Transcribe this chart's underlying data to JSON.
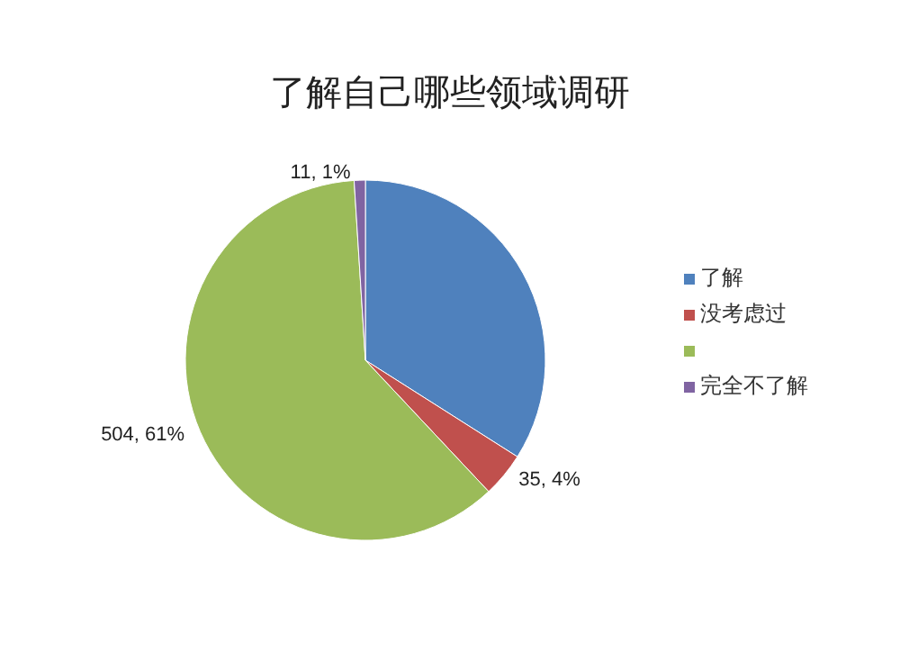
{
  "chart_data": {
    "type": "pie",
    "title": "了解自己哪些领域调研",
    "categories": [
      "了解",
      "没考虑过",
      null,
      "完全不了解"
    ],
    "values": [
      34,
      4,
      61,
      1
    ],
    "colors": [
      "#4f81bd",
      "#c0504d",
      "#9bbb59",
      "#8064a2"
    ],
    "value_labels": [
      null,
      "35, 4%",
      "504, 61%",
      "11, 1%"
    ],
    "legend": "right"
  }
}
